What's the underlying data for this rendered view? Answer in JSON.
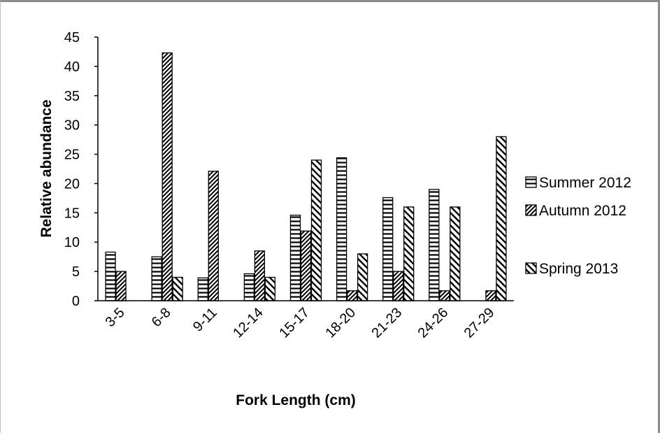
{
  "chart_data": {
    "type": "bar",
    "title": "",
    "xlabel": "Fork Length (cm)",
    "ylabel": "Relative abundance",
    "ylim": [
      0,
      45
    ],
    "yticks": [
      "0",
      "5",
      "10",
      "15",
      "20",
      "25",
      "30",
      "35",
      "40",
      "45"
    ],
    "categories": [
      "3-5",
      "6-8",
      "9-11",
      "12-14",
      "15-17",
      "18-20",
      "21-23",
      "24-26",
      "27-29"
    ],
    "series": [
      {
        "name": "Summer 2012",
        "pattern": "horizontal",
        "values": [
          8.3,
          7.5,
          3.9,
          4.6,
          14.6,
          24.4,
          17.6,
          19.0,
          0
        ]
      },
      {
        "name": "Autumn 2012",
        "pattern": "diagonal-up",
        "values": [
          5.0,
          42.3,
          22.1,
          8.5,
          11.9,
          1.7,
          5.0,
          1.7,
          1.7
        ]
      },
      {
        "name": "Spring 2013",
        "pattern": "diagonal-down",
        "values": [
          0,
          4.0,
          0,
          4.0,
          24.0,
          8.0,
          16.0,
          16.0,
          28.0
        ]
      }
    ],
    "grid": false,
    "legend_position": "right"
  }
}
